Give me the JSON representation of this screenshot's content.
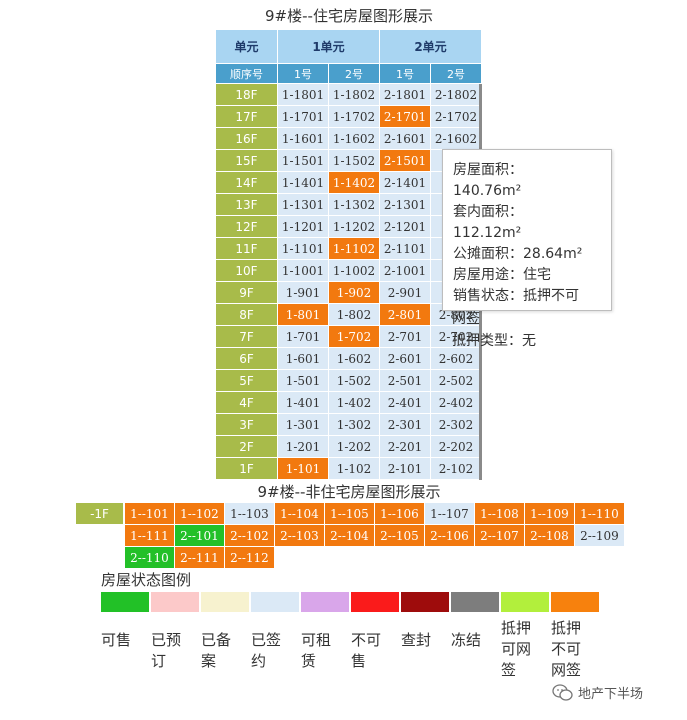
{
  "residential": {
    "title": "9#楼--住宅房屋图形展示",
    "header_unit_label": "单元",
    "header_seq_label": "顺序号",
    "units": [
      {
        "label": "1单元",
        "rooms": [
          "1号",
          "2号"
        ]
      },
      {
        "label": "2单元",
        "rooms": [
          "1号",
          "2号"
        ]
      }
    ],
    "rows": [
      {
        "floor": "18F",
        "cells": [
          [
            "1-1801",
            "signed"
          ],
          [
            "1-1802",
            "signed"
          ],
          [
            "2-1801",
            "signed"
          ],
          [
            "2-1802",
            "signed"
          ]
        ]
      },
      {
        "floor": "17F",
        "cells": [
          [
            "1-1701",
            "signed"
          ],
          [
            "1-1702",
            "signed"
          ],
          [
            "2-1701",
            "mortgage"
          ],
          [
            "2-1702",
            "signed"
          ]
        ]
      },
      {
        "floor": "16F",
        "cells": [
          [
            "1-1601",
            "signed"
          ],
          [
            "1-1602",
            "signed"
          ],
          [
            "2-1601",
            "signed"
          ],
          [
            "2-1602",
            "signed"
          ]
        ]
      },
      {
        "floor": "15F",
        "cells": [
          [
            "1-1501",
            "signed"
          ],
          [
            "1-1502",
            "signed"
          ],
          [
            "2-1501",
            "mortgage"
          ],
          [
            "",
            "signed"
          ]
        ]
      },
      {
        "floor": "14F",
        "cells": [
          [
            "1-1401",
            "signed"
          ],
          [
            "1-1402",
            "mortgage"
          ],
          [
            "2-1401",
            "signed"
          ],
          [
            "",
            "signed"
          ]
        ]
      },
      {
        "floor": "13F",
        "cells": [
          [
            "1-1301",
            "signed"
          ],
          [
            "1-1302",
            "signed"
          ],
          [
            "2-1301",
            "signed"
          ],
          [
            "",
            "signed"
          ]
        ]
      },
      {
        "floor": "12F",
        "cells": [
          [
            "1-1201",
            "signed"
          ],
          [
            "1-1202",
            "signed"
          ],
          [
            "2-1201",
            "signed"
          ],
          [
            "",
            "signed"
          ]
        ]
      },
      {
        "floor": "11F",
        "cells": [
          [
            "1-1101",
            "signed"
          ],
          [
            "1-1102",
            "mortgage"
          ],
          [
            "2-1101",
            "signed"
          ],
          [
            "",
            "signed"
          ]
        ]
      },
      {
        "floor": "10F",
        "cells": [
          [
            "1-1001",
            "signed"
          ],
          [
            "1-1002",
            "signed"
          ],
          [
            "2-1001",
            "signed"
          ],
          [
            "",
            "signed"
          ]
        ]
      },
      {
        "floor": "9F",
        "cells": [
          [
            "1-901",
            "signed"
          ],
          [
            "1-902",
            "mortgage"
          ],
          [
            "2-901",
            "signed"
          ],
          [
            "",
            "signed"
          ]
        ]
      },
      {
        "floor": "8F",
        "cells": [
          [
            "1-801",
            "mortgage"
          ],
          [
            "1-802",
            "signed"
          ],
          [
            "2-801",
            "mortgage"
          ],
          [
            "2-802",
            "signed"
          ]
        ]
      },
      {
        "floor": "7F",
        "cells": [
          [
            "1-701",
            "signed"
          ],
          [
            "1-702",
            "mortgage"
          ],
          [
            "2-701",
            "signed"
          ],
          [
            "2-702",
            "signed"
          ]
        ]
      },
      {
        "floor": "6F",
        "cells": [
          [
            "1-601",
            "signed"
          ],
          [
            "1-602",
            "signed"
          ],
          [
            "2-601",
            "signed"
          ],
          [
            "2-602",
            "signed"
          ]
        ]
      },
      {
        "floor": "5F",
        "cells": [
          [
            "1-501",
            "signed"
          ],
          [
            "1-502",
            "signed"
          ],
          [
            "2-501",
            "signed"
          ],
          [
            "2-502",
            "signed"
          ]
        ]
      },
      {
        "floor": "4F",
        "cells": [
          [
            "1-401",
            "signed"
          ],
          [
            "1-402",
            "signed"
          ],
          [
            "2-401",
            "signed"
          ],
          [
            "2-402",
            "signed"
          ]
        ]
      },
      {
        "floor": "3F",
        "cells": [
          [
            "1-301",
            "signed"
          ],
          [
            "1-302",
            "signed"
          ],
          [
            "2-301",
            "signed"
          ],
          [
            "2-302",
            "signed"
          ]
        ]
      },
      {
        "floor": "2F",
        "cells": [
          [
            "1-201",
            "signed"
          ],
          [
            "1-202",
            "signed"
          ],
          [
            "2-201",
            "signed"
          ],
          [
            "2-202",
            "signed"
          ]
        ]
      },
      {
        "floor": "1F",
        "cells": [
          [
            "1-101",
            "mortgage"
          ],
          [
            "1-102",
            "signed"
          ],
          [
            "2-101",
            "signed"
          ],
          [
            "2-102",
            "signed"
          ]
        ]
      }
    ]
  },
  "tooltip": {
    "lines": [
      "房屋面积：",
      "140.76m²",
      "套内面积：",
      "112.12m²",
      "公摊面积：28.64m²",
      "房屋用途：住宅",
      "销售状态：抵押不可"
    ],
    "bleed": "网签",
    "overflow": "抵押类型：无"
  },
  "non_residential": {
    "title": "9#楼--非住宅房屋图形展示",
    "floor": "-1F",
    "rows": [
      [
        [
          "1--101",
          "mortgage"
        ],
        [
          "1--102",
          "mortgage"
        ],
        [
          "1--103",
          "signed"
        ],
        [
          "1--104",
          "mortgage"
        ],
        [
          "1--105",
          "mortgage"
        ],
        [
          "1--106",
          "mortgage"
        ],
        [
          "1--107",
          "signed"
        ],
        [
          "1--108",
          "mortgage"
        ],
        [
          "1--109",
          "mortgage"
        ],
        [
          "1--110",
          "mortgage"
        ]
      ],
      [
        [
          "1--111",
          "mortgage"
        ],
        [
          "2--101",
          "available"
        ],
        [
          "2--102",
          "mortgage"
        ],
        [
          "2--103",
          "mortgage"
        ],
        [
          "2--104",
          "mortgage"
        ],
        [
          "2--105",
          "mortgage"
        ],
        [
          "2--106",
          "mortgage"
        ],
        [
          "2--107",
          "mortgage"
        ],
        [
          "2--108",
          "mortgage"
        ],
        [
          "2--109",
          "signed"
        ]
      ],
      [
        [
          "2--110",
          "available"
        ],
        [
          "2--111",
          "mortgage"
        ],
        [
          "2--112",
          "mortgage"
        ]
      ]
    ]
  },
  "legend": {
    "title": "房屋状态图例",
    "items": [
      {
        "label": "可售",
        "color": "#22c127"
      },
      {
        "label": "已预订",
        "color": "#fcc9c9"
      },
      {
        "label": "已备案",
        "color": "#f7f2cf"
      },
      {
        "label": "已签约",
        "color": "#dbe9f6"
      },
      {
        "label": "可租赁",
        "color": "#d9a6ea"
      },
      {
        "label": "不可售",
        "color": "#fa1b1b"
      },
      {
        "label": "查封",
        "color": "#9e0c0c"
      },
      {
        "label": "冻结",
        "color": "#7d7d7d"
      },
      {
        "label": "抵押可网签",
        "color": "#b2ef3c"
      },
      {
        "label": "抵押不可网签",
        "color": "#f7810d"
      }
    ]
  },
  "watermark": "地产下半场",
  "status_colors": {
    "signed": "#dbe9f6",
    "mortgage": "#f2790f",
    "available": "#23c028",
    "floor": "#a8bb4a",
    "header": "#a9d5f2",
    "subheader": "#4a9fcc"
  }
}
